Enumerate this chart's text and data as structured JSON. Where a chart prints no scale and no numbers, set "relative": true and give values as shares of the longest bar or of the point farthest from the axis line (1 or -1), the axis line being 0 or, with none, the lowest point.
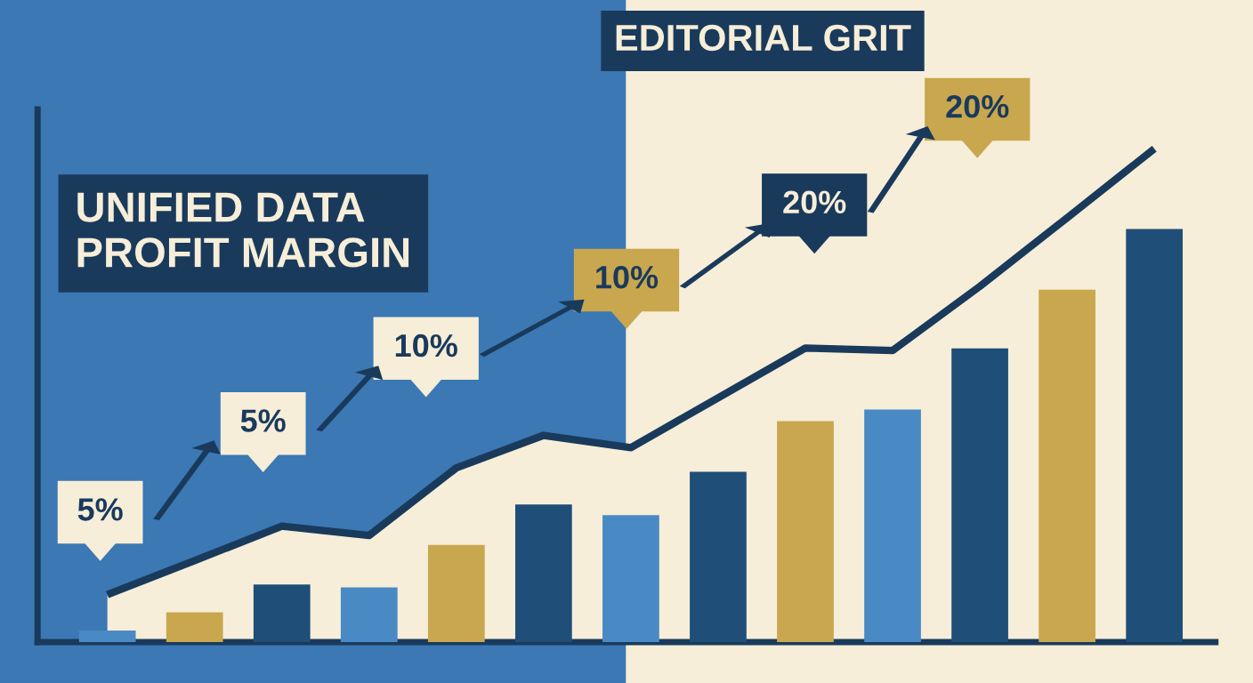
{
  "chart_data": [
    {
      "type": "bar",
      "title": "UNIFIED DATA\nPROFIT MARGIN",
      "subtitle": "EDITORIAL GRIT",
      "relative": true,
      "categories": [
        null,
        null,
        null,
        null,
        null,
        null,
        null,
        null,
        null,
        null,
        null,
        null,
        null
      ],
      "colors": [
        "#4a8ac4",
        "#c9a74e",
        "#1f4e79",
        "#4a8ac4",
        "#c9a74e",
        "#1f4e79",
        "#4a8ac4",
        "#1f4e79",
        "#c9a74e",
        "#4a8ac4",
        "#1f4e79",
        "#c9a74e",
        "#1f4e79"
      ],
      "values": [
        0.028,
        0.072,
        0.139,
        0.132,
        0.235,
        0.333,
        0.307,
        0.412,
        0.535,
        0.563,
        0.711,
        0.853,
        1.0
      ],
      "annotations": [
        "5%",
        "5%",
        "10%",
        "10%",
        "20%",
        "20%"
      ]
    },
    {
      "type": "area",
      "relative": true,
      "color": "#1a3a5c",
      "categories": [
        null,
        null,
        null,
        null,
        null,
        null,
        null,
        null,
        null,
        null,
        null,
        null,
        null
      ],
      "values": [
        0.096,
        0.165,
        0.235,
        0.216,
        0.353,
        0.419,
        0.394,
        0.495,
        0.596,
        0.591,
        0.721,
        0.86,
        1.0
      ]
    }
  ]
}
